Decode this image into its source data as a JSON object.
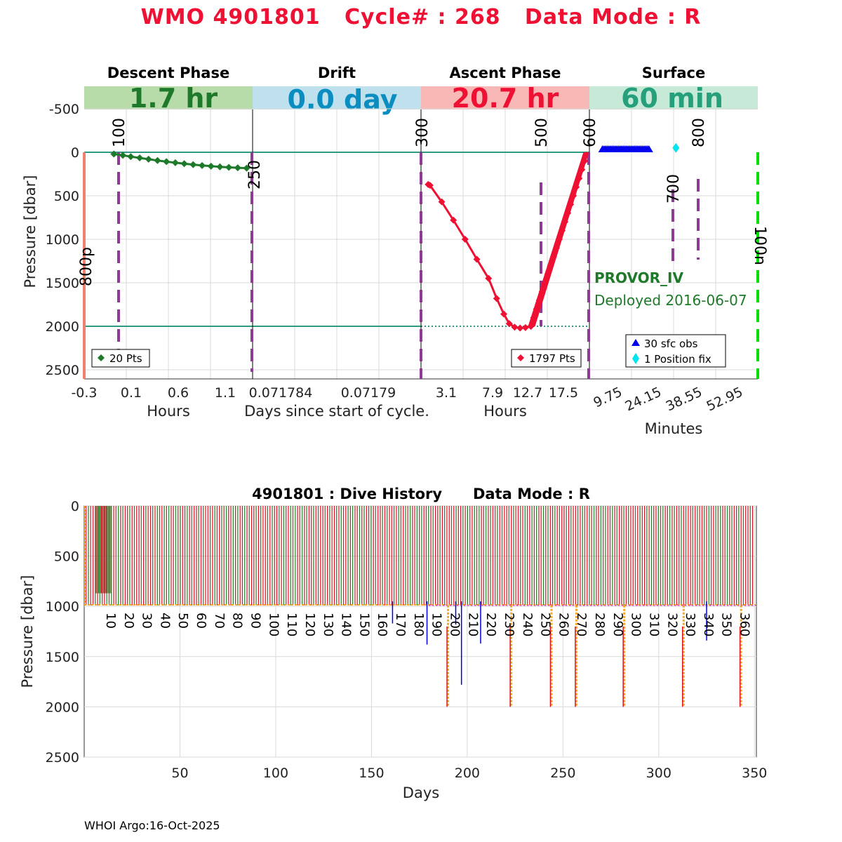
{
  "header": {
    "title": "WMO 4901801   Cycle# : 268   Data Mode : R"
  },
  "colors": {
    "title": "#ee1133",
    "descent": "#1e7a2a",
    "descent_band": "#b7dcaa",
    "drift": "#0a8dc0",
    "drift_band": "#bfe1ee",
    "ascent": "#ee1133",
    "ascent_band": "#f8b9b6",
    "surface": "#26a07a",
    "surface_band": "#c6e9d8",
    "marker": "#8e3b96",
    "reference_line": "#2e9a80",
    "surface_obs": "#0000ee",
    "position_fix": "#00e5ee",
    "park_line": "#00dd00",
    "history_green": "#2a7a2a",
    "history_red": "#dd1122",
    "history_orange": "#f5a623",
    "history_blue": "#0000dd",
    "history_magenta": "#dd22dd"
  },
  "phases": [
    {
      "name": "Descent Phase",
      "duration": "1.7 hr",
      "axis_label": "Hours",
      "ticks": [
        "-0.3",
        "0.1",
        "0.6",
        "1.1"
      ]
    },
    {
      "name": "Drift",
      "duration": "0.0 day",
      "axis_label": "Days since start of cycle.",
      "ticks": [
        "0.071784",
        "0.07179"
      ]
    },
    {
      "name": "Ascent Phase",
      "duration": "20.7 hr",
      "axis_label": "Hours",
      "ticks": [
        "3.1",
        "7.9",
        "12.7",
        "17.5"
      ]
    },
    {
      "name": "Surface",
      "duration": "60 min",
      "axis_label": "Minutes",
      "ticks": [
        "9.75",
        "24.15",
        "38.55",
        "52.95"
      ]
    }
  ],
  "profile": {
    "ylabel": "Pressure [dbar]",
    "y_ticks": [
      "-500",
      "0",
      "500",
      "1000",
      "1500",
      "2000",
      "2500"
    ],
    "marker_labels": {
      "m100": "100",
      "m250": "250",
      "m300": "300",
      "m500": "500",
      "m600": "600",
      "m700": "700",
      "m800": "800",
      "left_800p": "800p",
      "right_100n": "100n"
    },
    "legend_descent": "20 Pts",
    "legend_ascent": "1797 Pts",
    "legend_surface_obs": "30 sfc obs",
    "legend_position_fix": "1 Position fix",
    "float_type": "PROVOR_IV",
    "deployed": "Deployed 2016-06-07"
  },
  "chart_data": [
    {
      "type": "line",
      "panel": "descent",
      "x_unit": "hours",
      "xlim": [
        -0.3,
        1.4
      ],
      "ylim": [
        2600,
        -700
      ],
      "x": [
        0.0,
        0.09,
        0.17,
        0.26,
        0.35,
        0.44,
        0.53,
        0.62,
        0.71,
        0.8,
        0.89,
        0.98,
        1.07,
        1.16,
        1.25,
        1.34
      ],
      "y": [
        20,
        35,
        50,
        65,
        80,
        95,
        108,
        120,
        131,
        142,
        152,
        160,
        167,
        173,
        178,
        182
      ],
      "points": 20
    },
    {
      "type": "line",
      "panel": "ascent",
      "x_unit": "hours",
      "xlim": [
        2.2,
        20.9
      ],
      "ylim": [
        2600,
        -700
      ],
      "x": [
        3.0,
        3.2,
        4.5,
        5.8,
        7.1,
        8.4,
        9.7,
        10.6,
        11.4,
        12.0,
        12.6,
        13.2,
        13.8,
        14.4,
        20.7
      ],
      "y": [
        370,
        380,
        570,
        780,
        1000,
        1230,
        1450,
        1680,
        1860,
        1970,
        2010,
        2020,
        2015,
        2000,
        0
      ],
      "points": 1797
    },
    {
      "type": "scatter",
      "panel": "surface",
      "x_unit": "minutes",
      "xlim": [
        4,
        62
      ],
      "ylim": [
        2600,
        -700
      ],
      "surface_obs": {
        "x_range": [
          8.5,
          24.5
        ],
        "y": 0,
        "count": 30
      },
      "position_fix": {
        "x": 33.8,
        "y": -50
      }
    },
    {
      "type": "bar",
      "panel": "dive_history",
      "title": "4901801 : Dive History      Data Mode : R",
      "xlabel": "Days",
      "ylabel": "Pressure [dbar]",
      "xlim": [
        0,
        351
      ],
      "ylim": [
        2500,
        0
      ],
      "x_ticks": [
        50,
        100,
        150,
        200,
        250,
        300,
        350
      ],
      "y_ticks": [
        0,
        500,
        1000,
        1500,
        2000,
        2500
      ],
      "cycle_labels": [
        10,
        20,
        30,
        40,
        50,
        60,
        70,
        80,
        90,
        100,
        110,
        120,
        130,
        140,
        150,
        160,
        170,
        180,
        190,
        200,
        210,
        220,
        230,
        240,
        250,
        260,
        270,
        280,
        290,
        300,
        310,
        320,
        330,
        340,
        350,
        360
      ],
      "typical_depth": 990,
      "deep_profiles_2000dbar_days": [
        190,
        223,
        244,
        257,
        282,
        313,
        343
      ],
      "blue_spikes": [
        {
          "day": 161,
          "p": 1170
        },
        {
          "day": 179,
          "p": 1380
        },
        {
          "day": 194,
          "p": 1180
        },
        {
          "day": 197,
          "p": 1780
        },
        {
          "day": 207,
          "p": 1370
        },
        {
          "day": 325,
          "p": 1340
        }
      ]
    }
  ],
  "footer": {
    "text": "WHOI Argo:16-Oct-2025"
  }
}
